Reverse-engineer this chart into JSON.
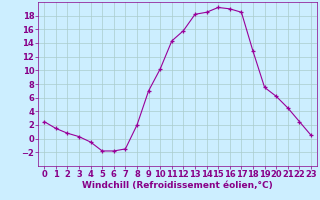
{
  "hours": [
    0,
    1,
    2,
    3,
    4,
    5,
    6,
    7,
    8,
    9,
    10,
    11,
    12,
    13,
    14,
    15,
    16,
    17,
    18,
    19,
    20,
    21,
    22,
    23
  ],
  "values": [
    2.5,
    1.5,
    0.8,
    0.3,
    -0.5,
    -1.8,
    -1.8,
    -1.5,
    2.0,
    7.0,
    10.2,
    14.3,
    15.8,
    18.2,
    18.5,
    19.2,
    19.0,
    18.5,
    12.8,
    7.5,
    6.2,
    4.5,
    2.5,
    0.5
  ],
  "line_color": "#990099",
  "marker": "+",
  "bg_color": "#cceeff",
  "grid_color": "#aacccc",
  "xlabel": "Windchill (Refroidissement éolien,°C)",
  "ylim": [
    -4,
    20
  ],
  "yticks": [
    -2,
    0,
    2,
    4,
    6,
    8,
    10,
    12,
    14,
    16,
    18
  ],
  "xticks": [
    0,
    1,
    2,
    3,
    4,
    5,
    6,
    7,
    8,
    9,
    10,
    11,
    12,
    13,
    14,
    15,
    16,
    17,
    18,
    19,
    20,
    21,
    22,
    23
  ],
  "tick_color": "#880088",
  "axis_color": "#880088",
  "xlabel_color": "#880088",
  "xlabel_fontsize": 6.5,
  "tick_fontsize": 6.0
}
